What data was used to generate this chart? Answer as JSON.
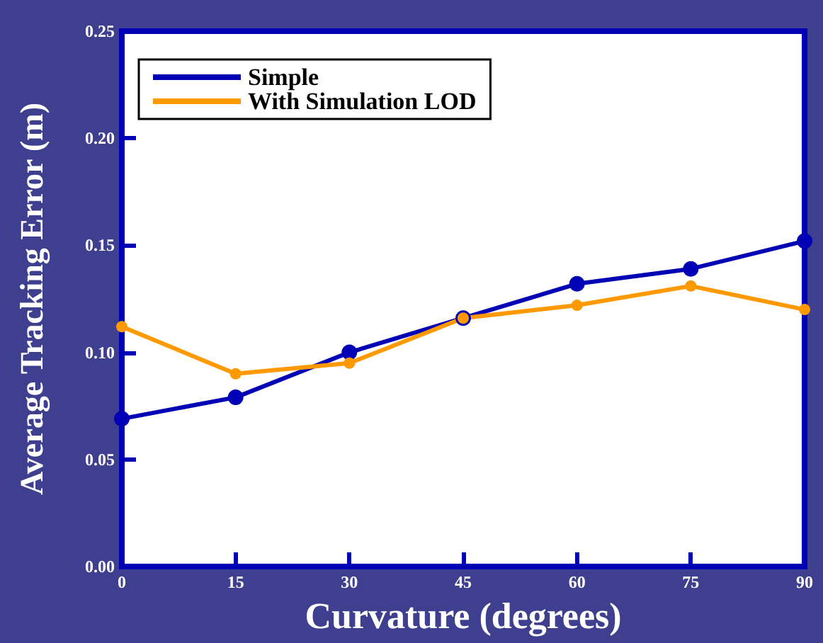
{
  "chart_data": {
    "type": "line",
    "xlabel": "Curvature (degrees)",
    "ylabel": "Average Tracking Error (m)",
    "x": [
      0,
      15,
      30,
      45,
      60,
      75,
      90
    ],
    "series": [
      {
        "name": "Simple",
        "color": "#0000b4",
        "values": [
          0.069,
          0.079,
          0.1,
          0.116,
          0.132,
          0.139,
          0.152
        ]
      },
      {
        "name": "With Simulation LOD",
        "color": "#ff9900",
        "values": [
          0.112,
          0.09,
          0.095,
          0.116,
          0.122,
          0.131,
          0.12
        ]
      }
    ],
    "xlim": [
      0,
      90
    ],
    "xticks": [
      0,
      15,
      30,
      45,
      60,
      75,
      90
    ],
    "ylim": [
      0,
      0.25
    ],
    "yticks": [
      {
        "value": 0,
        "label": "0.00"
      },
      {
        "value": 0.05,
        "label": "0.05"
      },
      {
        "value": 0.1,
        "label": "0.10"
      },
      {
        "value": 0.15,
        "label": "0.15"
      },
      {
        "value": 0.2,
        "label": "0.20"
      },
      {
        "value": 0.25,
        "label": "0.25"
      }
    ],
    "grid": false,
    "legend": "top left",
    "marker": "circle",
    "line_style": "solid"
  }
}
